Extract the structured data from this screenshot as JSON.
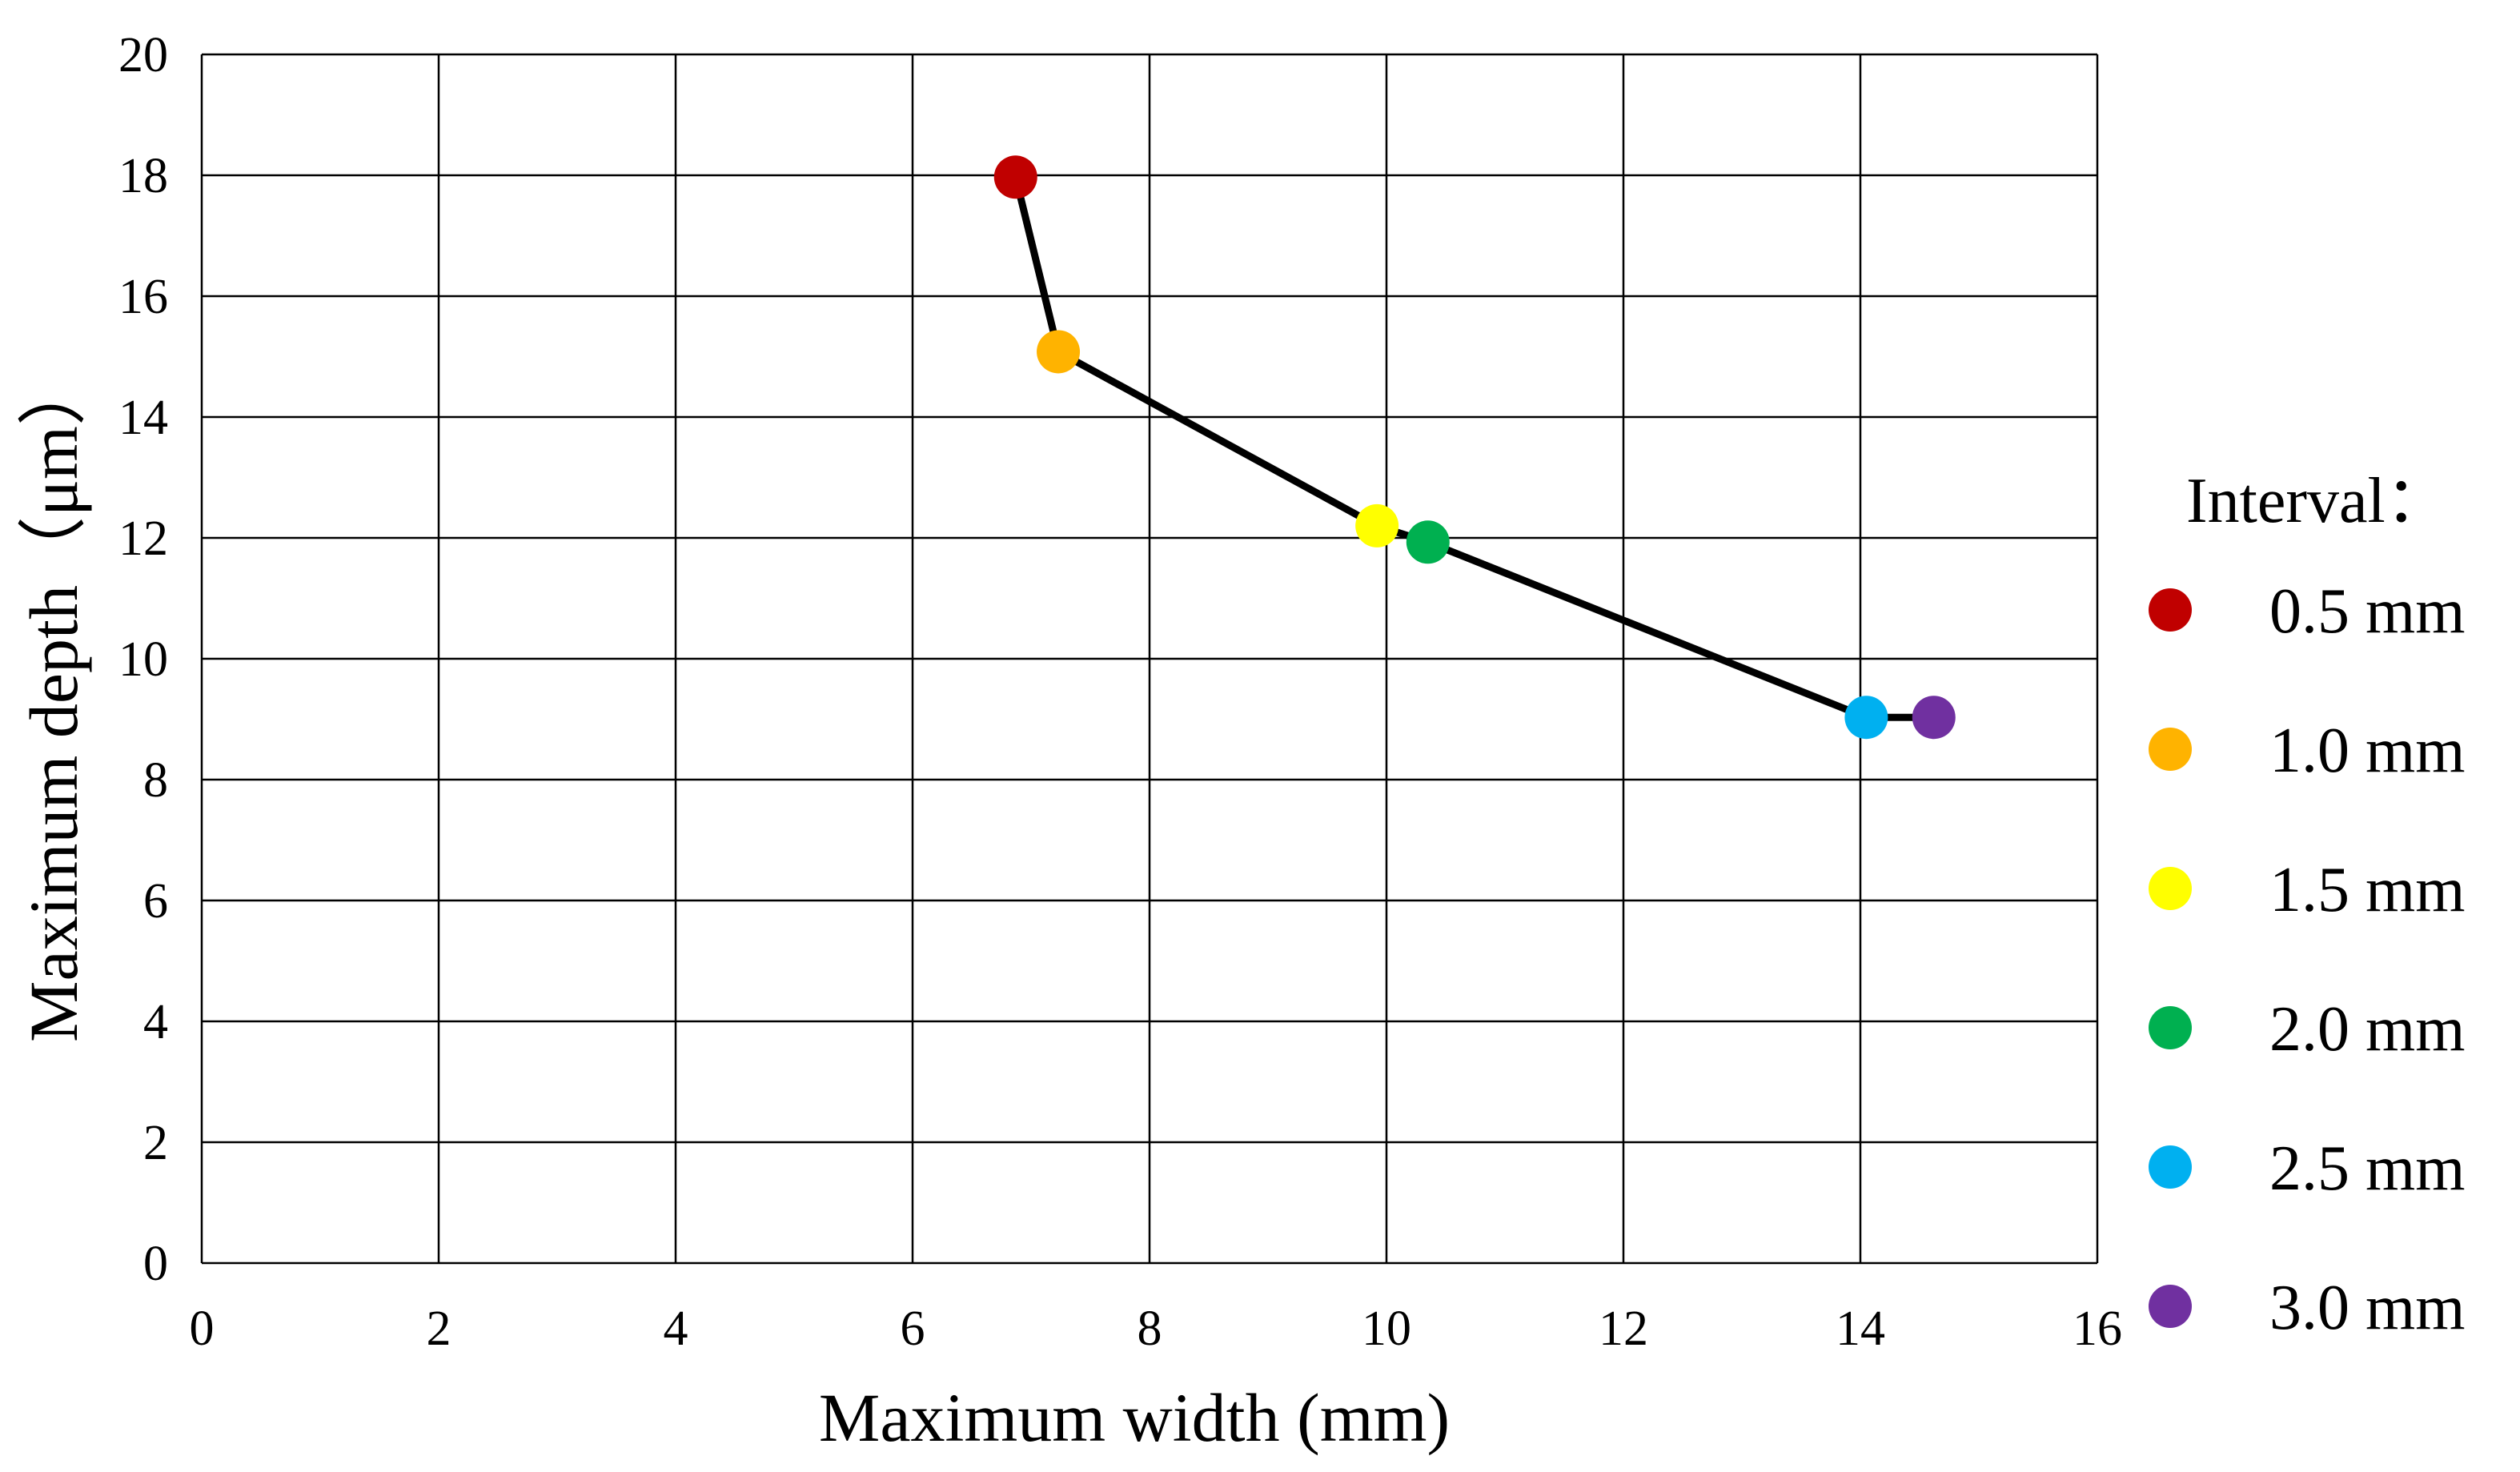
{
  "chart_data": {
    "type": "scatter",
    "xlabel": "Maximum width (mm)",
    "ylabel": "Maximum depth（μm）",
    "xlim": [
      0,
      16
    ],
    "ylim": [
      0,
      20
    ],
    "x_ticks": [
      0,
      2,
      4,
      6,
      8,
      10,
      12,
      14,
      16
    ],
    "y_ticks": [
      0,
      2,
      4,
      6,
      8,
      10,
      12,
      14,
      16,
      18,
      20
    ],
    "grid": true,
    "legend_position": "right",
    "legend_title": "Interval：",
    "line_color": "#000000",
    "series": [
      {
        "name": "0.5 mm",
        "x": 6.87,
        "y": 17.97,
        "color": "#C00000"
      },
      {
        "name": "1.0 mm",
        "x": 7.23,
        "y": 15.08,
        "color": "#FFB300"
      },
      {
        "name": "1.5 mm",
        "x": 9.92,
        "y": 12.2,
        "color": "#FFFF00"
      },
      {
        "name": "2.0 mm",
        "x": 10.35,
        "y": 11.93,
        "color": "#00B050"
      },
      {
        "name": "2.5 mm",
        "x": 14.05,
        "y": 9.03,
        "color": "#00B0F0"
      },
      {
        "name": "3.0 mm",
        "x": 14.62,
        "y": 9.03,
        "color": "#7030A0"
      }
    ]
  }
}
